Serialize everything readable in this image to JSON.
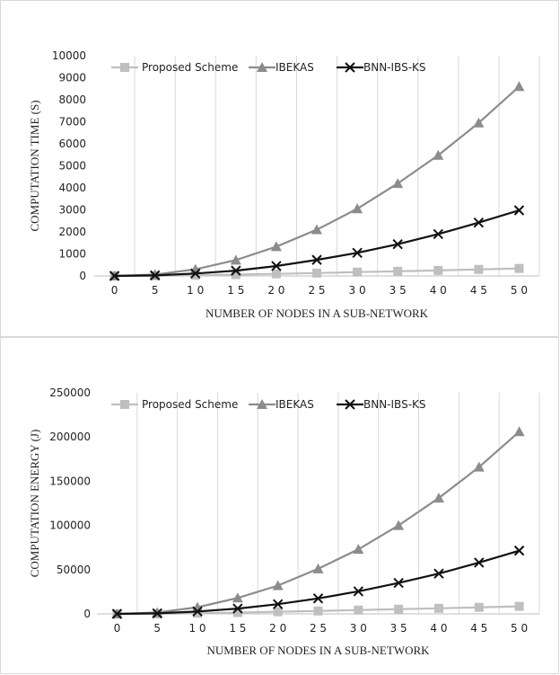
{
  "chart_data": [
    {
      "type": "line",
      "title": "",
      "xlabel": "NUMBER OF NODES IN A SUB-NETWORK",
      "ylabel": "COMPUTATION TIME (S)",
      "x": [
        0,
        5,
        10,
        15,
        20,
        25,
        30,
        35,
        40,
        45,
        50
      ],
      "xtick_labels": [
        "0",
        "5",
        "1 0",
        "1 5",
        "2 0",
        "2 5",
        "3 0",
        "3 5",
        "4 0",
        "4 5",
        "5 0"
      ],
      "ylim": [
        0,
        10000
      ],
      "yticks": [
        0,
        1000,
        2000,
        3000,
        4000,
        5000,
        6000,
        7000,
        8000,
        9000,
        10000
      ],
      "grid": "vertical",
      "legend": "top",
      "series": [
        {
          "name": "Proposed Scheme",
          "color": "#bfbfbf",
          "marker": "square",
          "values": [
            0,
            5,
            30,
            60,
            95,
            130,
            175,
            210,
            250,
            295,
            340
          ]
        },
        {
          "name": "IBEKAS",
          "color": "#8c8c8c",
          "marker": "triangle",
          "values": [
            0,
            60,
            300,
            720,
            1330,
            2100,
            3050,
            4200,
            5480,
            6950,
            8600
          ]
        },
        {
          "name": "BNN-IBS-KS",
          "color": "#111111",
          "marker": "x",
          "values": [
            0,
            25,
            110,
            240,
            450,
            730,
            1050,
            1440,
            1900,
            2420,
            2980
          ]
        }
      ]
    },
    {
      "type": "line",
      "title": "",
      "xlabel": "NUMBER OF NODES IN A SUB-NETWORK",
      "ylabel": "COMPUTATION ENERGY (J)",
      "x": [
        0,
        5,
        10,
        15,
        20,
        25,
        30,
        35,
        40,
        45,
        50
      ],
      "xtick_labels": [
        "0",
        "5",
        "1 0",
        "1 5",
        "2 0",
        "2 5",
        "3 0",
        "3 5",
        "4 0",
        "4 5",
        "5 0"
      ],
      "ylim": [
        0,
        250000
      ],
      "yticks": [
        0,
        50000,
        100000,
        150000,
        200000,
        250000
      ],
      "grid": "vertical",
      "legend": "top",
      "series": [
        {
          "name": "Proposed Scheme",
          "color": "#bfbfbf",
          "marker": "square",
          "values": [
            0,
            150,
            700,
            1500,
            2400,
            3300,
            4300,
            5300,
            6300,
            7400,
            8500
          ]
        },
        {
          "name": "IBEKAS",
          "color": "#8c8c8c",
          "marker": "triangle",
          "values": [
            0,
            1500,
            7500,
            18000,
            32000,
            51000,
            73000,
            100000,
            131000,
            166000,
            206000
          ]
        },
        {
          "name": "BNN-IBS-KS",
          "color": "#111111",
          "marker": "x",
          "values": [
            0,
            600,
            2700,
            6000,
            11000,
            17500,
            25500,
            35000,
            45500,
            58000,
            71500
          ]
        }
      ]
    }
  ]
}
